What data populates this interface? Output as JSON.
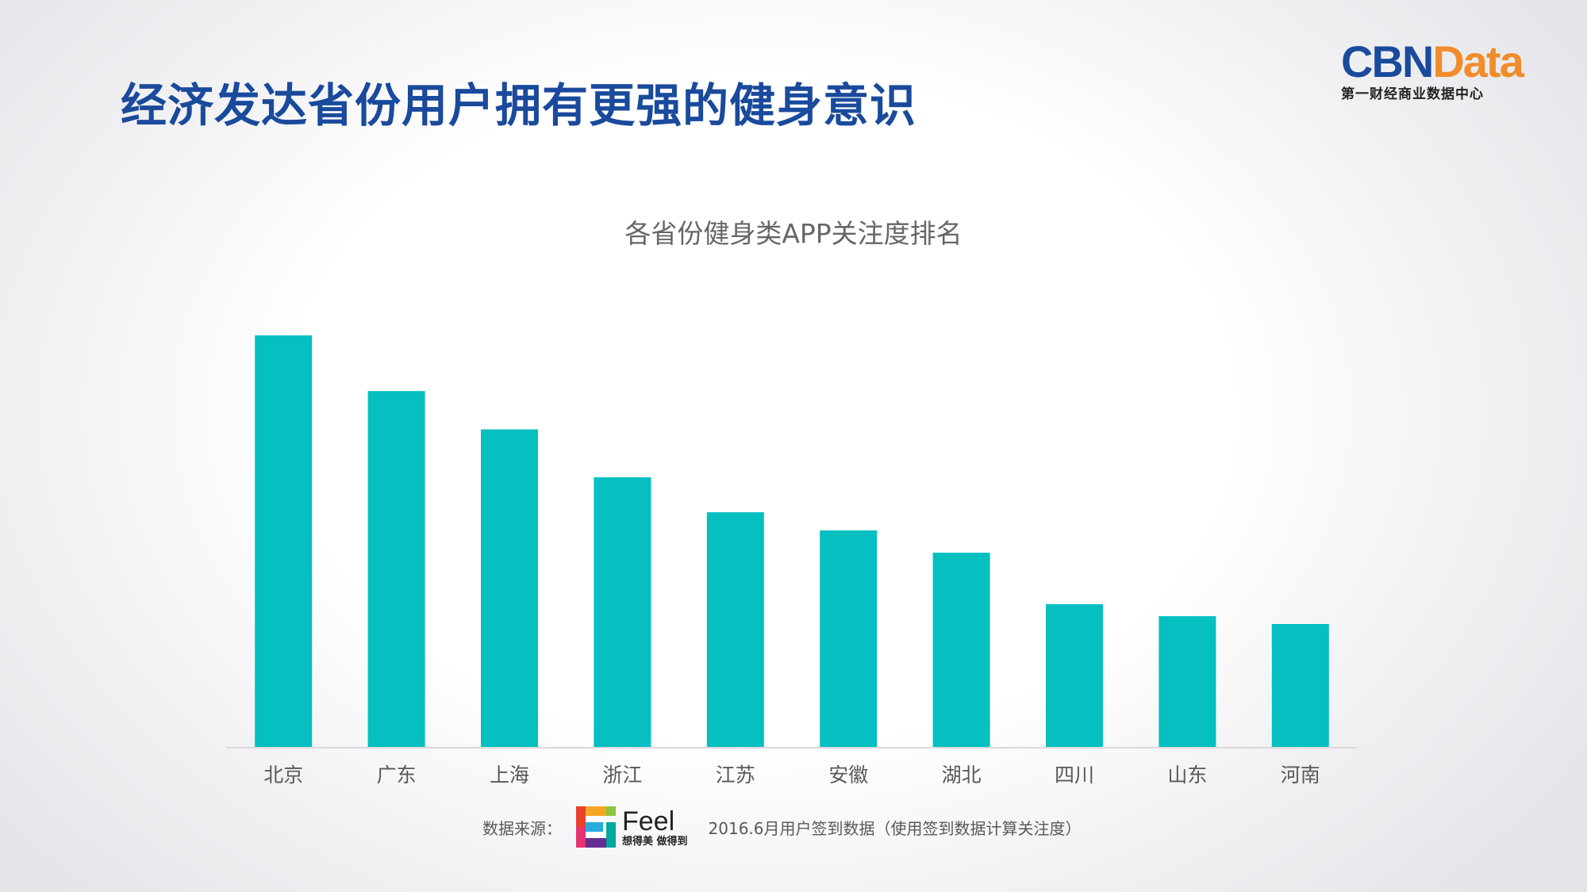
{
  "header": {
    "title": "经济发达省份用户拥有更强的健身意识"
  },
  "logo": {
    "brand_primary": "CBN",
    "brand_secondary": "Data",
    "subtitle": "第一财经商业数据中心",
    "primary_color": "#1a4a9c",
    "secondary_color": "#f08c2a"
  },
  "source": {
    "label": "数据来源：",
    "feel_name": "Feel",
    "feel_slogan": "想得美 做得到",
    "note": "2016.6月用户签到数据（使用签到数据计算关注度）"
  },
  "chart_data": {
    "type": "bar",
    "title": "各省份健身类APP关注度排名",
    "categories": [
      "北京",
      "广东",
      "上海",
      "浙江",
      "江苏",
      "安徽",
      "湖北",
      "四川",
      "山东",
      "河南"
    ],
    "values": [
      100,
      86.5,
      77.2,
      65.6,
      57.1,
      52.7,
      47.3,
      34.8,
      31.9,
      30.0
    ],
    "bar_color": "#05bfc0",
    "grid": false,
    "y_axis_visible": false,
    "ylim": [
      0,
      100
    ]
  }
}
